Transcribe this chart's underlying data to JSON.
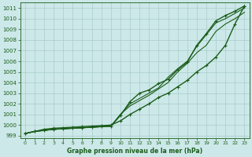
{
  "xlabel": "Graphe pression niveau de la mer (hPa)",
  "bg_color": "#cce8e8",
  "grid_color": "#aacccc",
  "line_color": "#1a5c1a",
  "ylim": [
    998.8,
    1011.5
  ],
  "xlim": [
    -0.5,
    23.5
  ],
  "yticks": [
    999,
    1000,
    1001,
    1002,
    1003,
    1004,
    1005,
    1006,
    1007,
    1008,
    1009,
    1010,
    1011
  ],
  "xticks": [
    0,
    1,
    2,
    3,
    4,
    5,
    6,
    7,
    8,
    9,
    10,
    11,
    12,
    13,
    14,
    15,
    16,
    17,
    18,
    19,
    20,
    21,
    22,
    23
  ],
  "series": [
    {
      "y": [
        999.2,
        999.4,
        999.5,
        999.6,
        999.65,
        999.7,
        999.75,
        999.8,
        999.85,
        999.9,
        1000.9,
        1002.2,
        1003.0,
        1003.3,
        1003.9,
        1004.3,
        1005.2,
        1005.9,
        1007.5,
        1008.6,
        1009.8,
        1010.3,
        1010.7,
        1011.2
      ],
      "marker": "+",
      "lw": 1.0
    },
    {
      "y": [
        999.2,
        999.4,
        999.5,
        999.6,
        999.65,
        999.7,
        999.75,
        999.8,
        999.85,
        999.9,
        1001.0,
        1002.0,
        1002.5,
        1003.0,
        1003.5,
        1004.5,
        1005.3,
        1006.0,
        1007.4,
        1008.5,
        1009.6,
        1010.0,
        1010.5,
        1011.0
      ],
      "marker": null,
      "lw": 0.8
    },
    {
      "y": [
        999.2,
        999.4,
        999.5,
        999.6,
        999.65,
        999.7,
        999.75,
        999.8,
        999.85,
        999.9,
        1001.0,
        1001.8,
        1002.3,
        1002.8,
        1003.4,
        1004.0,
        1005.0,
        1005.8,
        1006.8,
        1007.5,
        1008.8,
        1009.5,
        1010.0,
        1010.6
      ],
      "marker": null,
      "lw": 0.8
    },
    {
      "y": [
        999.2,
        999.4,
        999.6,
        999.7,
        999.75,
        999.8,
        999.85,
        999.9,
        999.95,
        1000.0,
        1000.4,
        1001.0,
        1001.5,
        1002.0,
        1002.6,
        1003.0,
        1003.6,
        1004.2,
        1005.0,
        1005.6,
        1006.4,
        1007.5,
        1009.5,
        1011.2
      ],
      "marker": "+",
      "lw": 1.0
    }
  ]
}
